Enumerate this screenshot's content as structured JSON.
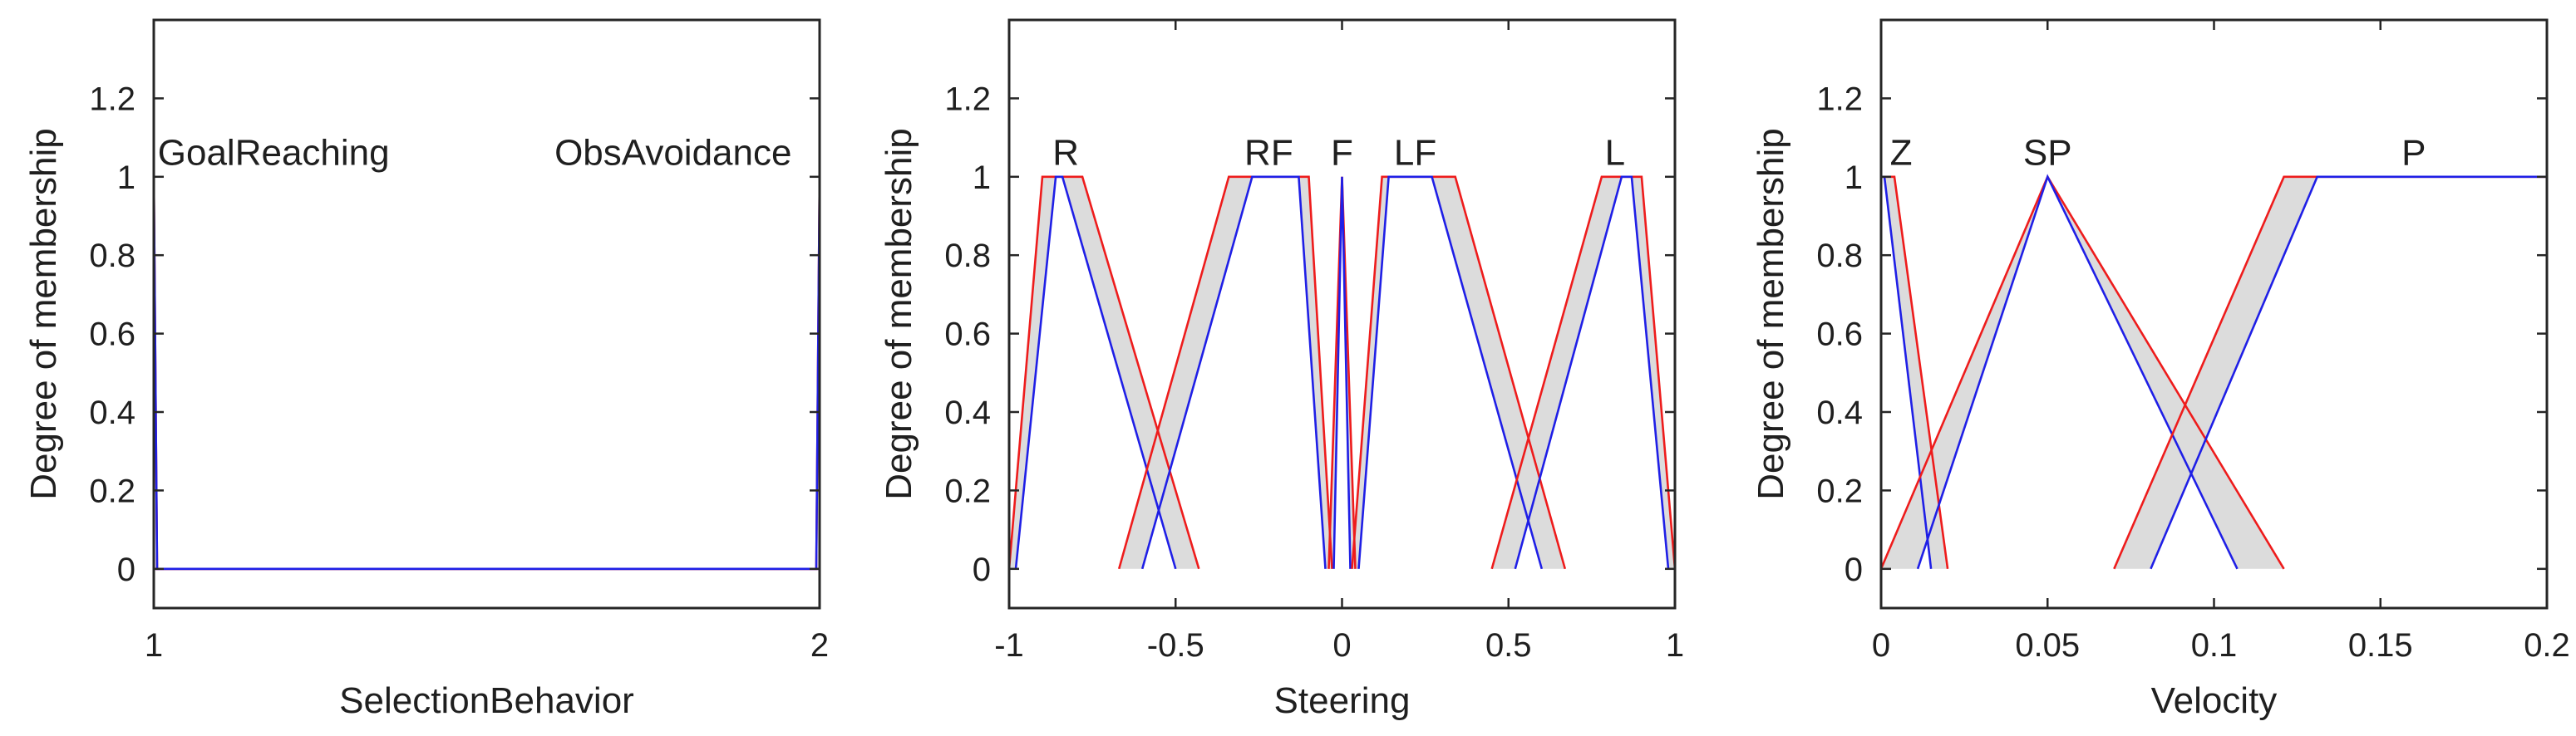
{
  "chart_data": [
    {
      "type": "line",
      "title": "",
      "xlabel": "SelectionBehavior",
      "ylabel": "Degree of membership",
      "xlim": [
        1,
        2
      ],
      "ylim": [
        -0.1,
        1.4
      ],
      "xticks": [
        1,
        2
      ],
      "xtick_labels": [
        "1",
        "2"
      ],
      "yticks": [
        0,
        0.2,
        0.4,
        0.6,
        0.8,
        1,
        1.2
      ],
      "ytick_labels": [
        "0",
        "0.2",
        "0.4",
        "0.6",
        "0.8",
        "1",
        "1.2"
      ],
      "membership_functions": [
        {
          "name": "GoalReaching",
          "label_x": 1.18,
          "label_y": 1.03,
          "upper": [
            [
              1,
              1
            ],
            [
              1.005,
              0
            ],
            [
              2,
              0
            ]
          ],
          "lower": [
            [
              1,
              1
            ],
            [
              1.005,
              0
            ],
            [
              2,
              0
            ]
          ]
        },
        {
          "name": "ObsAvoidance",
          "label_x": 1.78,
          "label_y": 1.03,
          "upper": [
            [
              1,
              0
            ],
            [
              1.995,
              0
            ],
            [
              2,
              1
            ]
          ],
          "lower": [
            [
              1,
              0
            ],
            [
              1.995,
              0
            ],
            [
              2,
              1
            ]
          ]
        }
      ]
    },
    {
      "type": "line",
      "title": "",
      "xlabel": "Steering",
      "ylabel": "Degree of membership",
      "xlim": [
        -1,
        1
      ],
      "ylim": [
        -0.1,
        1.4
      ],
      "xticks": [
        -1,
        -0.5,
        0,
        0.5,
        1
      ],
      "xtick_labels": [
        "-1",
        "-0.5",
        "0",
        "0.5",
        "1"
      ],
      "yticks": [
        0,
        0.2,
        0.4,
        0.6,
        0.8,
        1,
        1.2
      ],
      "ytick_labels": [
        "0",
        "0.2",
        "0.4",
        "0.6",
        "0.8",
        "1",
        "1.2"
      ],
      "membership_functions": [
        {
          "name": "R",
          "label_x": -0.83,
          "label_y": 1.03,
          "upper": [
            [
              -1,
              0
            ],
            [
              -0.9,
              1
            ],
            [
              -0.78,
              1
            ],
            [
              -0.43,
              0
            ]
          ],
          "lower": [
            [
              -0.98,
              0
            ],
            [
              -0.86,
              1
            ],
            [
              -0.84,
              1
            ],
            [
              -0.5,
              0
            ]
          ]
        },
        {
          "name": "RF",
          "label_x": -0.22,
          "label_y": 1.03,
          "upper": [
            [
              -0.67,
              0
            ],
            [
              -0.34,
              1
            ],
            [
              -0.1,
              1
            ],
            [
              -0.03,
              0
            ]
          ],
          "lower": [
            [
              -0.6,
              0
            ],
            [
              -0.27,
              1
            ],
            [
              -0.13,
              1
            ],
            [
              -0.05,
              0
            ]
          ]
        },
        {
          "name": "F",
          "label_x": 0.0,
          "label_y": 1.03,
          "upper": [
            [
              -0.04,
              0
            ],
            [
              0,
              1
            ],
            [
              0.04,
              0
            ]
          ],
          "lower": [
            [
              -0.025,
              0
            ],
            [
              0,
              1
            ],
            [
              0.025,
              0
            ]
          ]
        },
        {
          "name": "LF",
          "label_x": 0.22,
          "label_y": 1.03,
          "upper": [
            [
              0.03,
              0
            ],
            [
              0.12,
              1
            ],
            [
              0.34,
              1
            ],
            [
              0.67,
              0
            ]
          ],
          "lower": [
            [
              0.05,
              0
            ],
            [
              0.14,
              1
            ],
            [
              0.27,
              1
            ],
            [
              0.6,
              0
            ]
          ]
        },
        {
          "name": "L",
          "label_x": 0.82,
          "label_y": 1.03,
          "upper": [
            [
              0.45,
              0
            ],
            [
              0.78,
              1
            ],
            [
              0.9,
              1
            ],
            [
              1,
              0
            ]
          ],
          "lower": [
            [
              0.52,
              0
            ],
            [
              0.84,
              1
            ],
            [
              0.87,
              1
            ],
            [
              0.98,
              0
            ]
          ]
        }
      ]
    },
    {
      "type": "line",
      "title": "",
      "xlabel": "Velocity",
      "ylabel": "Degree of membership",
      "xlim": [
        0,
        0.2
      ],
      "ylim": [
        -0.1,
        1.4
      ],
      "xticks": [
        0,
        0.05,
        0.1,
        0.15,
        0.2
      ],
      "xtick_labels": [
        "0",
        "0.05",
        "0.1",
        "0.15",
        "0.2"
      ],
      "yticks": [
        0,
        0.2,
        0.4,
        0.6,
        0.8,
        1,
        1.2
      ],
      "ytick_labels": [
        "0",
        "0.2",
        "0.4",
        "0.6",
        "0.8",
        "1",
        "1.2"
      ],
      "membership_functions": [
        {
          "name": "Z",
          "label_x": 0.006,
          "label_y": 1.03,
          "upper": [
            [
              0,
              1
            ],
            [
              0.004,
              1
            ],
            [
              0.02,
              0
            ]
          ],
          "lower": [
            [
              0,
              1
            ],
            [
              0.001,
              1
            ],
            [
              0.015,
              0
            ]
          ]
        },
        {
          "name": "SP",
          "label_x": 0.05,
          "label_y": 1.03,
          "upper": [
            [
              0,
              0
            ],
            [
              0.05,
              1
            ],
            [
              0.121,
              0
            ]
          ],
          "lower": [
            [
              0.011,
              0
            ],
            [
              0.05,
              1
            ],
            [
              0.107,
              0
            ]
          ]
        },
        {
          "name": "P",
          "label_x": 0.16,
          "label_y": 1.03,
          "upper": [
            [
              0.07,
              0
            ],
            [
              0.121,
              1
            ],
            [
              0.2,
              1
            ]
          ],
          "lower": [
            [
              0.081,
              0
            ],
            [
              0.131,
              1
            ],
            [
              0.2,
              1
            ]
          ]
        }
      ]
    }
  ],
  "colors": {
    "upper": "#ee1c1c",
    "lower": "#1f1fe6",
    "footprint": "#dcdcdc",
    "axes": "#262626"
  }
}
